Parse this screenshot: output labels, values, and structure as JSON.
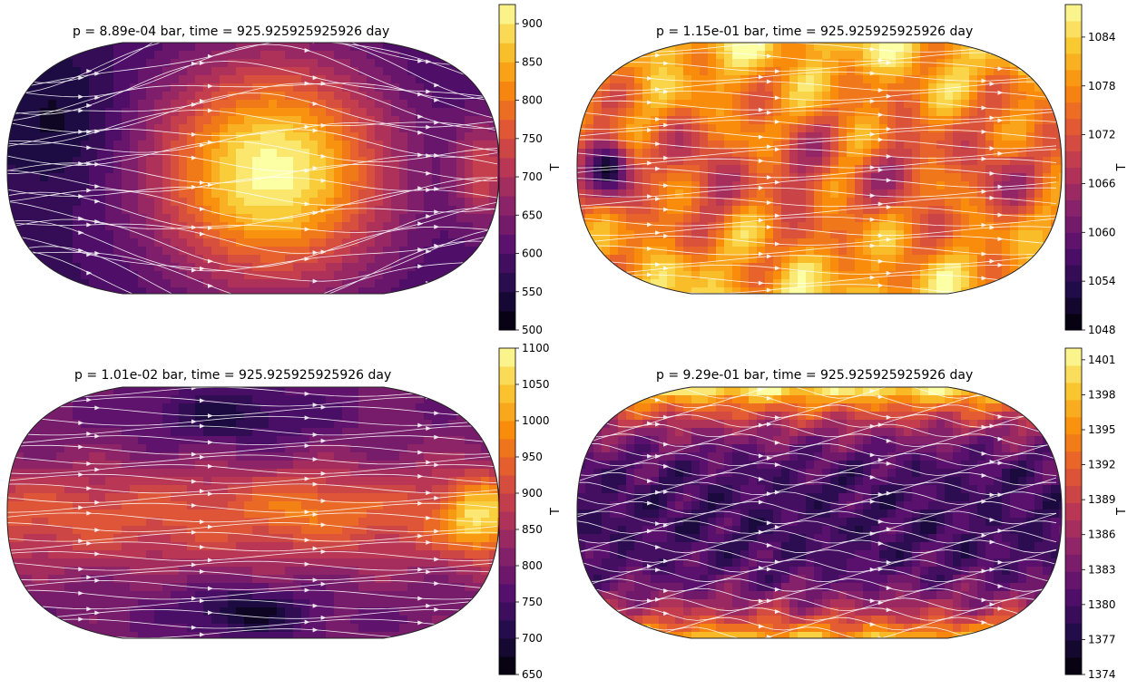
{
  "chart_data": [
    {
      "type": "heatmap",
      "projection": "robinson",
      "title": "p = 8.89e-04 bar, time = 925.925925925926 day",
      "colorbar_label": "T",
      "colormap": "inferno",
      "clim": [
        500,
        925
      ],
      "ticks": [
        500,
        550,
        600,
        650,
        700,
        750,
        800,
        850,
        900
      ],
      "tick_labels": [
        "500",
        "550",
        "600",
        "650",
        "700",
        "750",
        "800",
        "850",
        "900"
      ],
      "levels": 17,
      "overlay": "white streamlines",
      "pattern": "hot dayside centered mid-map, cold nightside to the left"
    },
    {
      "type": "heatmap",
      "projection": "robinson",
      "title": "1.15e-01 bar, time = 925.925925925926 day",
      "title_prefix": "p =",
      "colorbar_label": "T",
      "colormap": "inferno",
      "clim": [
        1048,
        1088
      ],
      "ticks": [
        1048,
        1054,
        1060,
        1066,
        1072,
        1078,
        1084
      ],
      "tick_labels": [
        "1048",
        "1054",
        "1060",
        "1066",
        "1072",
        "1078",
        "1084"
      ],
      "levels": 20,
      "overlay": "white streamlines",
      "pattern": "warm patchy field with orange bands at poles"
    },
    {
      "type": "heatmap",
      "projection": "robinson",
      "title": "p = 1.01e-02 bar, time = 925.925925925926 day",
      "colorbar_label": "T",
      "colormap": "inferno",
      "clim": [
        650,
        1100
      ],
      "ticks": [
        650,
        700,
        750,
        800,
        850,
        900,
        950,
        1000,
        1050,
        1100
      ],
      "tick_labels": [
        "650",
        "700",
        "750",
        "800",
        "850",
        "900",
        "950",
        "1000",
        "1050",
        "1100"
      ],
      "levels": 18,
      "overlay": "white streamlines",
      "pattern": "warm equatorial jet, cold vortices at high latitudes"
    },
    {
      "type": "heatmap",
      "projection": "robinson",
      "title": "p = 9.29e-01 bar, time = 925.925925925926 day",
      "colorbar_label": "T",
      "colormap": "inferno",
      "clim": [
        1374,
        1402
      ],
      "ticks": [
        1374,
        1377,
        1380,
        1383,
        1386,
        1389,
        1392,
        1395,
        1398,
        1401
      ],
      "tick_labels": [
        "1374",
        "1377",
        "1380",
        "1383",
        "1386",
        "1389",
        "1392",
        "1395",
        "1398",
        "1401"
      ],
      "levels": 19,
      "overlay": "white streamlines",
      "pattern": "cool turbulent interior, hot polar bands"
    }
  ]
}
